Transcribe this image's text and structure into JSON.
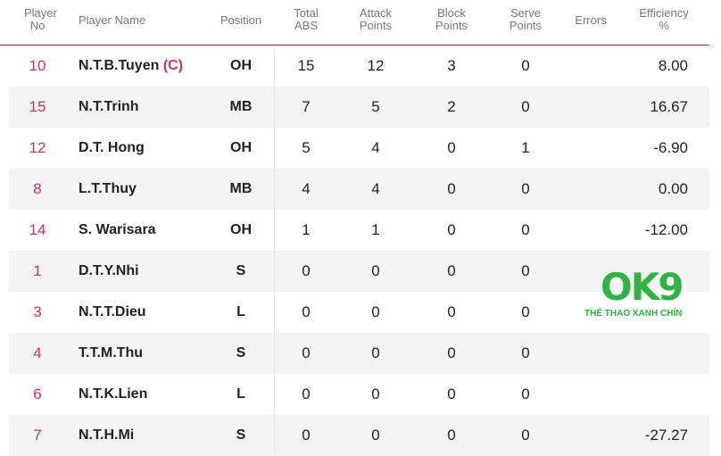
{
  "logo": {
    "text": "OK9",
    "tagline": "THỂ THAO XANH CHÍN"
  },
  "headers": {
    "no": "Player No",
    "name": "Player Name",
    "position": "Position",
    "total": "Total ABS",
    "attack": "Attack Points",
    "block": "Block Points",
    "serve": "Serve Points",
    "errors": "Errors",
    "efficiency": "Efficiency %"
  },
  "colors": {
    "accent": "#c8306a",
    "line": "#9c2656",
    "logo": "#2fb344"
  },
  "rows": [
    {
      "no": "10",
      "name": "N.T.B.Tuyen",
      "captain": "(C)",
      "position": "OH",
      "total": "15",
      "attack": "12",
      "block": "3",
      "serve": "0",
      "errors": "",
      "efficiency": "8.00"
    },
    {
      "no": "15",
      "name": "N.T.Trinh",
      "captain": "",
      "position": "MB",
      "total": "7",
      "attack": "5",
      "block": "2",
      "serve": "0",
      "errors": "",
      "efficiency": "16.67"
    },
    {
      "no": "12",
      "name": "D.T. Hong",
      "captain": "",
      "position": "OH",
      "total": "5",
      "attack": "4",
      "block": "0",
      "serve": "1",
      "errors": "",
      "efficiency": "-6.90"
    },
    {
      "no": "8",
      "name": "L.T.Thuy",
      "captain": "",
      "position": "MB",
      "total": "4",
      "attack": "4",
      "block": "0",
      "serve": "0",
      "errors": "",
      "efficiency": "0.00"
    },
    {
      "no": "14",
      "name": "S. Warisara",
      "captain": "",
      "position": "OH",
      "total": "1",
      "attack": "1",
      "block": "0",
      "serve": "0",
      "errors": "",
      "efficiency": "-12.00"
    },
    {
      "no": "1",
      "name": "D.T.Y.Nhi",
      "captain": "",
      "position": "S",
      "total": "0",
      "attack": "0",
      "block": "0",
      "serve": "0",
      "errors": "",
      "efficiency": ""
    },
    {
      "no": "3",
      "name": "N.T.T.Dieu",
      "captain": "",
      "position": "L",
      "total": "0",
      "attack": "0",
      "block": "0",
      "serve": "0",
      "errors": "",
      "efficiency": ""
    },
    {
      "no": "4",
      "name": "T.T.M.Thu",
      "captain": "",
      "position": "S",
      "total": "0",
      "attack": "0",
      "block": "0",
      "serve": "0",
      "errors": "",
      "efficiency": ""
    },
    {
      "no": "6",
      "name": "N.T.K.Lien",
      "captain": "",
      "position": "L",
      "total": "0",
      "attack": "0",
      "block": "0",
      "serve": "0",
      "errors": "",
      "efficiency": ""
    },
    {
      "no": "7",
      "name": "N.T.H.Mi",
      "captain": "",
      "position": "S",
      "total": "0",
      "attack": "0",
      "block": "0",
      "serve": "0",
      "errors": "",
      "efficiency": "-27.27"
    }
  ]
}
